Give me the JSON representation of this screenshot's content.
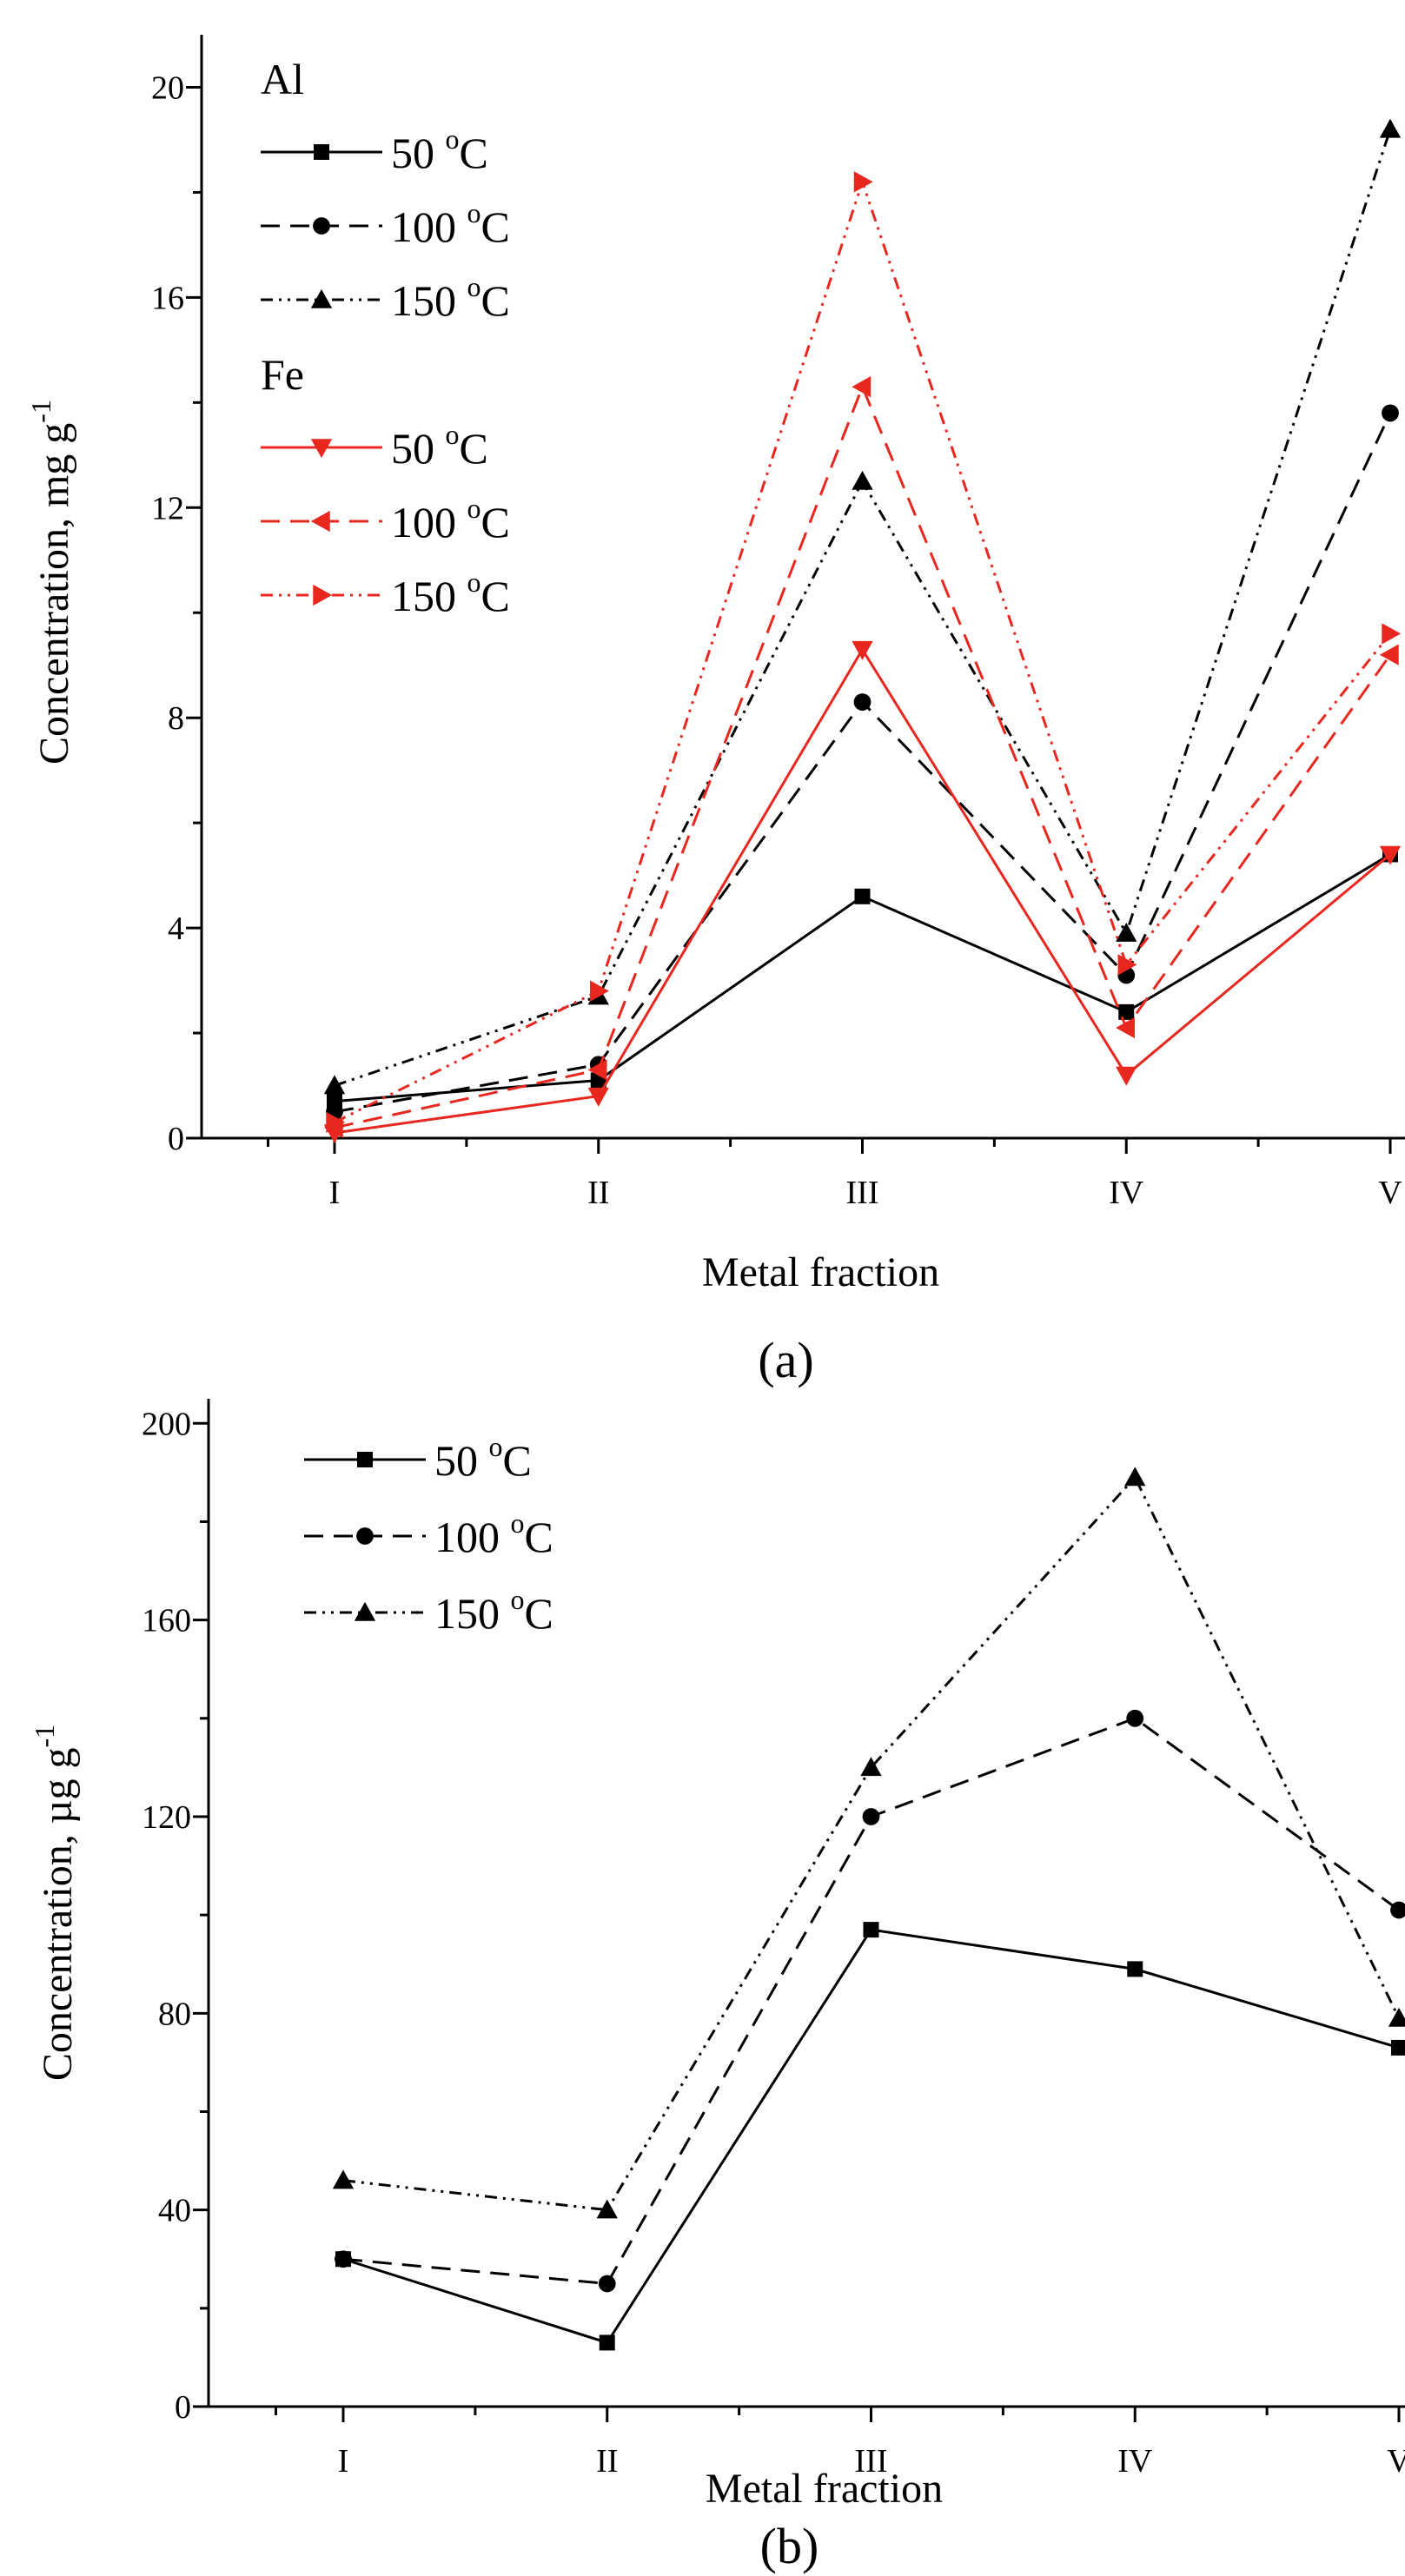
{
  "chart_data": [
    {
      "type": "line",
      "panel_label": "(a)",
      "xlabel": "Metal fraction",
      "ylabel": "Concentration, mg g",
      "ylabel_sup": "-1",
      "categories": [
        "I",
        "II",
        "III",
        "IV",
        "V"
      ],
      "ylim": [
        0,
        21
      ],
      "yticks": [
        0,
        4,
        8,
        12,
        16,
        20
      ],
      "legend_position": "top-left",
      "groups": [
        {
          "name": "Al",
          "color": "#000000",
          "series": [
            {
              "name": "50 ",
              "sup": "o",
              "unit": "C",
              "marker": "square",
              "dash": "solid",
              "values": [
                0.7,
                1.1,
                4.6,
                2.4,
                5.4
              ]
            },
            {
              "name": "100 ",
              "sup": "o",
              "unit": "C",
              "marker": "circle",
              "dash": "dash",
              "values": [
                0.5,
                1.4,
                8.3,
                3.1,
                13.8
              ]
            },
            {
              "name": "150 ",
              "sup": "o",
              "unit": "C",
              "marker": "triangle-up",
              "dash": "dashdotdot",
              "values": [
                1.0,
                2.7,
                12.5,
                3.9,
                19.2
              ]
            }
          ]
        },
        {
          "name": "Fe",
          "color": "#e8271f",
          "series": [
            {
              "name": "50 ",
              "sup": "o",
              "unit": "C",
              "marker": "triangle-down",
              "dash": "solid",
              "values": [
                0.1,
                0.8,
                9.3,
                1.2,
                5.4
              ]
            },
            {
              "name": "100 ",
              "sup": "o",
              "unit": "C",
              "marker": "triangle-left",
              "dash": "dash",
              "values": [
                0.2,
                1.3,
                14.3,
                2.1,
                9.2
              ]
            },
            {
              "name": "150 ",
              "sup": "o",
              "unit": "C",
              "marker": "triangle-right",
              "dash": "dashdotdot",
              "values": [
                0.3,
                2.8,
                18.2,
                3.3,
                9.6
              ]
            }
          ]
        }
      ]
    },
    {
      "type": "line",
      "panel_label": "(b)",
      "xlabel": "Metal fraction",
      "ylabel": "Concentration, µg g",
      "ylabel_sup": "-1",
      "categories": [
        "I",
        "II",
        "III",
        "IV",
        "V"
      ],
      "ylim": [
        0,
        205
      ],
      "yticks": [
        0,
        40,
        80,
        120,
        160,
        200
      ],
      "legend_position": "top-left",
      "groups": [
        {
          "name": "",
          "color": "#000000",
          "series": [
            {
              "name": "50 ",
              "sup": "o",
              "unit": "C",
              "marker": "square",
              "dash": "solid",
              "values": [
                30,
                13,
                97,
                89,
                73
              ]
            },
            {
              "name": "100 ",
              "sup": "o",
              "unit": "C",
              "marker": "circle",
              "dash": "dash",
              "values": [
                30,
                25,
                120,
                140,
                101
              ]
            },
            {
              "name": "150 ",
              "sup": "o",
              "unit": "C",
              "marker": "triangle-up",
              "dash": "dashdotdot",
              "values": [
                46,
                40,
                130,
                189,
                79
              ]
            }
          ]
        }
      ]
    }
  ]
}
